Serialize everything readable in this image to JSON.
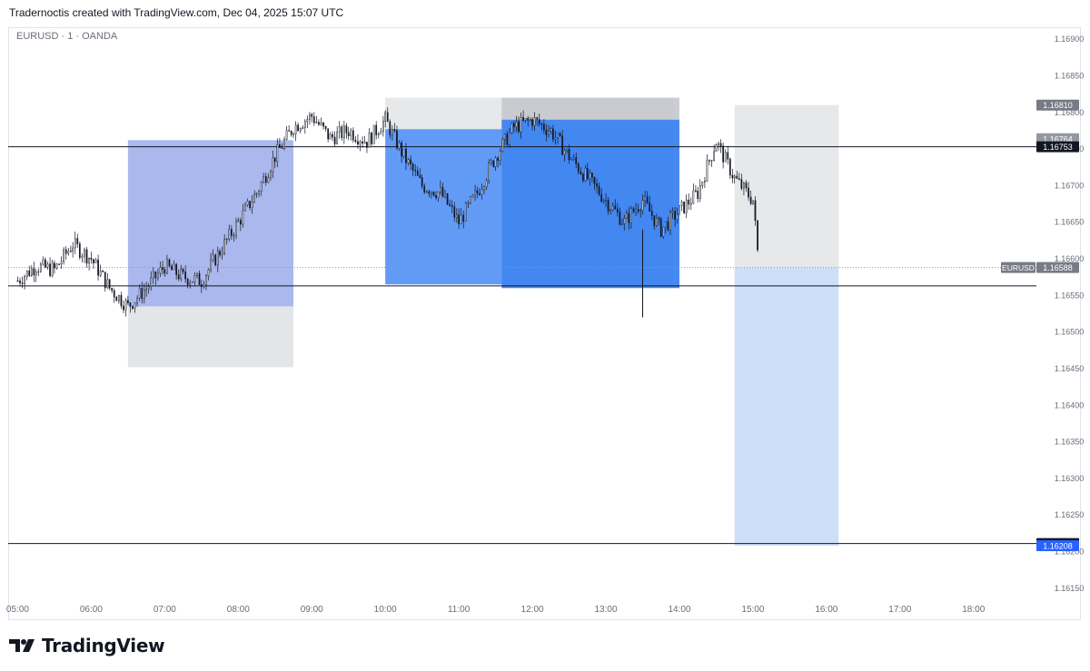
{
  "header": {
    "caption": "Tradernoctis created with TradingView.com, Dec 04, 2025 15:07 UTC"
  },
  "symbol": {
    "label": "EURUSD · 1 · OANDA"
  },
  "footer": {
    "brand": "TradingView",
    "logo_icon": "tradingview-logo-icon"
  },
  "chart_data": {
    "type": "candlestick",
    "title": "",
    "xlabel": "",
    "ylabel": "",
    "y_ticks": [
      "1.16900",
      "1.16850",
      "1.16800",
      "1.16750",
      "1.16700",
      "1.16650",
      "1.16600",
      "1.16550",
      "1.16500",
      "1.16450",
      "1.16400",
      "1.16350",
      "1.16300",
      "1.16250",
      "1.16200",
      "1.16150"
    ],
    "x_ticks": [
      "05:00",
      "06:00",
      "07:00",
      "08:00",
      "09:00",
      "10:00",
      "11:00",
      "12:00",
      "13:00",
      "14:00",
      "15:00",
      "16:00",
      "17:00",
      "18:00"
    ],
    "ylim": [
      1.1612,
      1.1692
    ],
    "xlim": [
      "04:53",
      "18:58"
    ],
    "grid": false,
    "price_path": [
      [
        "05:00",
        1.1657
      ],
      [
        "05:15",
        1.1659
      ],
      [
        "05:30",
        1.16585
      ],
      [
        "05:45",
        1.1662
      ],
      [
        "06:00",
        1.166
      ],
      [
        "06:15",
        1.1656
      ],
      [
        "06:30",
        1.16535
      ],
      [
        "06:45",
        1.1656
      ],
      [
        "07:00",
        1.1659
      ],
      [
        "07:15",
        1.16575
      ],
      [
        "07:30",
        1.1657
      ],
      [
        "07:45",
        1.1661
      ],
      [
        "08:00",
        1.1665
      ],
      [
        "08:15",
        1.1669
      ],
      [
        "08:30",
        1.1674
      ],
      [
        "08:45",
        1.1678
      ],
      [
        "09:00",
        1.16795
      ],
      [
        "09:15",
        1.16765
      ],
      [
        "09:30",
        1.16775
      ],
      [
        "09:45",
        1.1676
      ],
      [
        "10:00",
        1.1679
      ],
      [
        "10:15",
        1.1674
      ],
      [
        "10:30",
        1.167
      ],
      [
        "10:45",
        1.1669
      ],
      [
        "11:00",
        1.1665
      ],
      [
        "11:15",
        1.1669
      ],
      [
        "11:30",
        1.1674
      ],
      [
        "11:45",
        1.1678
      ],
      [
        "12:00",
        1.1679
      ],
      [
        "12:15",
        1.16775
      ],
      [
        "12:30",
        1.1674
      ],
      [
        "12:45",
        1.1671
      ],
      [
        "13:00",
        1.1668
      ],
      [
        "13:15",
        1.1665
      ],
      [
        "13:30",
        1.1668
      ],
      [
        "13:45",
        1.1664
      ],
      [
        "14:00",
        1.16665
      ],
      [
        "14:15",
        1.1669
      ],
      [
        "14:30",
        1.1676
      ],
      [
        "14:45",
        1.1671
      ],
      [
        "15:00",
        1.1668
      ],
      [
        "15:05",
        1.16588
      ]
    ],
    "low_wick": {
      "time": "13:30",
      "price": 1.1652
    },
    "horizontal_lines": [
      1.16753,
      1.16563,
      1.16211
    ],
    "price_labels": [
      {
        "value": "1.16810",
        "color": "#787b86"
      },
      {
        "value": "1.16764",
        "color": "#9598a1"
      },
      {
        "value": "1.16753",
        "color": "#131722"
      },
      {
        "value": "1.16588",
        "color": "#787b86",
        "tag": "EURUSD"
      },
      {
        "value": "1.16211",
        "color": "#131722"
      },
      {
        "value": "1.16208",
        "color": "#2962ff"
      }
    ],
    "positions": [
      {
        "name": "long-position-1",
        "start": "06:30",
        "end": "08:45",
        "entry": 1.16535,
        "target": 1.16762,
        "stop": 1.16452,
        "target_color": "#9bacea",
        "stop_color": "#e1e2e5"
      },
      {
        "name": "short-position-1",
        "start": "10:00",
        "end": "13:55",
        "entry": 1.16565,
        "target": 1.16777,
        "stop": 1.1682,
        "target_color": "#4a8df8",
        "stop_color": "#e4e5e8"
      },
      {
        "name": "short-position-2",
        "start": "11:35",
        "end": "14:00",
        "entry": 1.1656,
        "target": 1.1679,
        "stop": 1.1682,
        "target_color": "#2e7cf6",
        "stop_color": "#c7c8cd"
      },
      {
        "name": "short-position-3",
        "start": "14:45",
        "end": "16:10",
        "entry": 1.16588,
        "target": 1.16208,
        "stop": 1.1681,
        "target_color": "#c5d9f8",
        "stop_color": "#e4e5e8"
      }
    ],
    "colors": {
      "candle": "#131722",
      "line": "#131722",
      "axis_text": "#6a6d78",
      "dotted": "#9598a1"
    }
  }
}
